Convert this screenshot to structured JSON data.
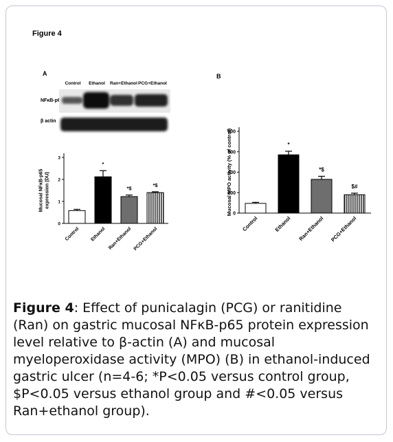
{
  "figure_label": "Figure 4",
  "blot": {
    "lanes": [
      "Control",
      "Ethanol",
      "Ran+Ethanol",
      "PCG+Ethanol"
    ],
    "rows": [
      "NFκB-p65",
      "β actin"
    ]
  },
  "chart_data": [
    {
      "type": "bar",
      "label": "A",
      "ylabel": [
        "Mucosal NFκB-p65",
        "expression (DU)"
      ],
      "categories": [
        "Control",
        "Ethanol",
        "Ran+Ethanol",
        "PCG+Ethanol"
      ],
      "values": [
        0.58,
        2.12,
        1.22,
        1.4
      ],
      "errors": [
        0.06,
        0.28,
        0.07,
        0.04
      ],
      "annotations": [
        null,
        "*",
        "*$",
        "*$"
      ],
      "colors": [
        "#ffffff",
        "#000000",
        "#6e6e6e",
        "#9a9a9a"
      ],
      "hatch": [
        false,
        false,
        false,
        true
      ],
      "ylim": [
        0,
        3
      ],
      "yticks": [
        0,
        1,
        2,
        3
      ]
    },
    {
      "type": "bar",
      "label": "B",
      "ylabel": [
        "Mucosal MPO activity (% of control)"
      ],
      "categories": [
        "Control",
        "Ethanol",
        "Ran+Ethanol",
        "PCG+Ethanol"
      ],
      "values": [
        95,
        570,
        330,
        180
      ],
      "errors": [
        10,
        35,
        30,
        15
      ],
      "annotations": [
        null,
        "*",
        "*$",
        "$#"
      ],
      "colors": [
        "#ffffff",
        "#000000",
        "#6e6e6e",
        "#9a9a9a"
      ],
      "hatch": [
        false,
        false,
        false,
        true
      ],
      "ylim": [
        0,
        800
      ],
      "yticks": [
        0,
        200,
        400,
        600,
        800
      ]
    }
  ],
  "caption": {
    "label": "Figure 4",
    "text": ": Effect of punicalagin (PCG) or ranitidine (Ran) on gastric mucosal NFκB-p65 protein expression level relative to β-actin (A) and mucosal myeloperoxidase activity (MPO) (B) in ethanol-induced gastric ulcer (n=4-6; *P<0.05 versus control group, $P<0.05 versus ethanol group and #<0.05 versus Ran+ethanol group)."
  }
}
